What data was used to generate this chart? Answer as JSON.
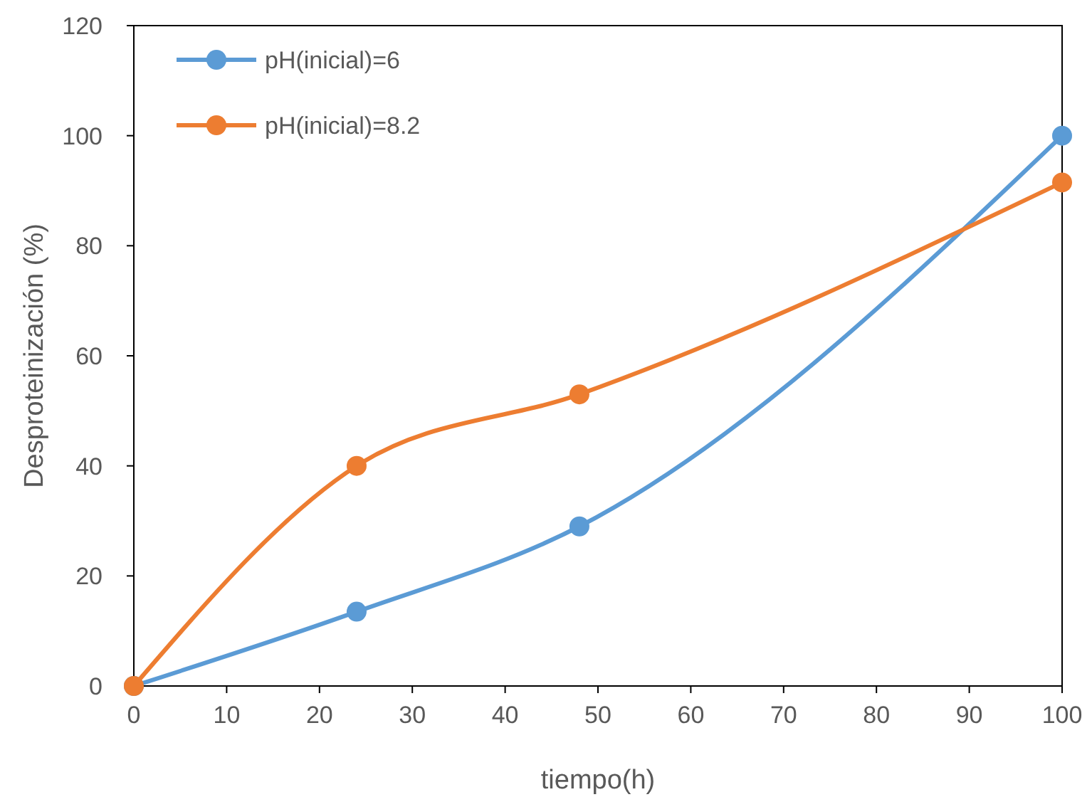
{
  "chart_data": {
    "type": "line",
    "xlabel": "tiempo(h)",
    "ylabel": "Desproteinización (%)",
    "xlim": [
      0,
      100
    ],
    "xticks": [
      0,
      10,
      20,
      30,
      40,
      50,
      60,
      70,
      80,
      90,
      100
    ],
    "ylim": [
      0,
      120
    ],
    "yticks": [
      0,
      20,
      40,
      60,
      80,
      100,
      120
    ],
    "grid": false,
    "legend": "top left",
    "marker": "circle",
    "line_style": "solid",
    "series": [
      {
        "name": "pH(inicial)=6",
        "color": "#5b9bd5",
        "x": [
          0,
          24,
          48,
          100
        ],
        "values": [
          0,
          13.5,
          29,
          100
        ]
      },
      {
        "name": "pH(inicial)=8.2",
        "color": "#ed7d31",
        "x": [
          0,
          24,
          48,
          100
        ],
        "values": [
          0,
          40,
          53,
          91.5
        ]
      }
    ]
  }
}
